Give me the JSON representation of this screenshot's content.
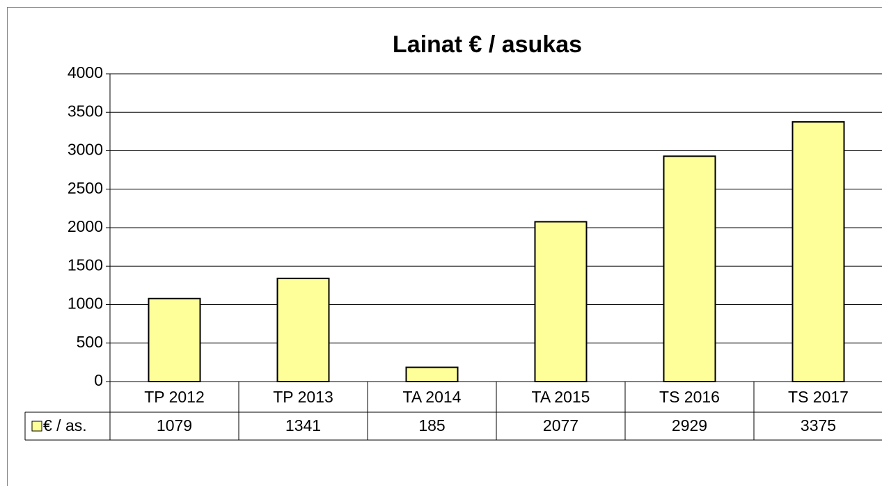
{
  "chart_data": {
    "type": "bar",
    "title": "Lainat € / asukas",
    "categories": [
      "TP 2012",
      "TP 2013",
      "TA 2014",
      "TA 2015",
      "TS 2016",
      "TS 2017"
    ],
    "series": [
      {
        "name": "€ / as.",
        "color": "#ffff99",
        "values": [
          1079,
          1341,
          185,
          2077,
          2929,
          3375
        ]
      }
    ],
    "ylim": [
      0,
      4000
    ],
    "yticks": [
      0,
      500,
      1000,
      1500,
      2000,
      2500,
      3000,
      3500,
      4000
    ],
    "grid": true
  }
}
